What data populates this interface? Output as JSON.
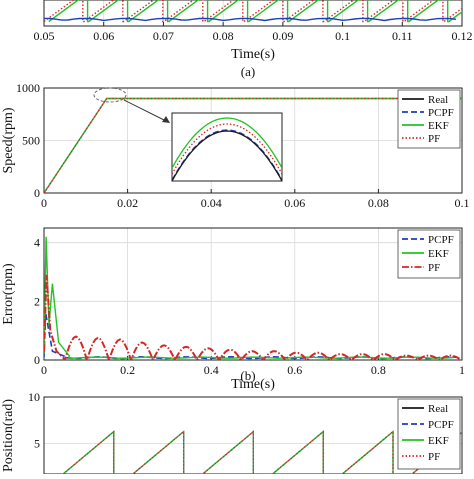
{
  "captions": {
    "a": "(a)",
    "b": "(b)"
  },
  "chart_data": [
    {
      "id": "panel-a-tail",
      "type": "line",
      "xlabel": "Time(s)",
      "ylabel": "",
      "xlim": [
        0.05,
        0.12
      ],
      "ylim": [
        -1,
        7
      ],
      "x_tick_labels": [
        "0.05",
        "0.06",
        "0.07",
        "0.08",
        "0.09",
        "0.1",
        "0.11",
        "0.12"
      ],
      "x_ticks": [
        0.05,
        0.06,
        0.07,
        0.08,
        0.09,
        0.1,
        0.11,
        0.12
      ],
      "grid": true,
      "series": [
        {
          "name": "",
          "color": "#d62728",
          "kind": "sawtooth_period",
          "period": 0.0067,
          "amplitude": 6.3,
          "style": "dotted"
        },
        {
          "name": "",
          "color": "#22c422",
          "kind": "sawtooth_period",
          "period": 0.0067,
          "amplitude": 6.3,
          "style": "solid"
        },
        {
          "name": "",
          "color": "#1f3fbf",
          "kind": "small_ripple",
          "amplitude": 0.5,
          "style": "solid"
        }
      ]
    },
    {
      "id": "speed",
      "type": "line",
      "xlabel": "",
      "ylabel": "Speed(rpm)",
      "xlim": [
        0,
        0.1
      ],
      "ylim": [
        0,
        1000
      ],
      "x_ticks": [
        0,
        0.02,
        0.04,
        0.06,
        0.08,
        0.1
      ],
      "x_tick_labels": [
        "0",
        "0.02",
        "0.04",
        "0.06",
        "0.08",
        "0.1"
      ],
      "y_ticks": [
        0,
        500,
        1000
      ],
      "y_tick_labels": [
        "0",
        "500",
        "1000"
      ],
      "grid": true,
      "legend": "top-right",
      "inset": true,
      "series": [
        {
          "name": "Real",
          "color": "#1a1a1a",
          "style": "solid",
          "x": [
            0,
            0.015,
            0.1
          ],
          "y": [
            0,
            900,
            900
          ]
        },
        {
          "name": "PCPF",
          "color": "#1f3fbf",
          "style": "dashed",
          "x": [
            0,
            0.015,
            0.1
          ],
          "y": [
            0,
            900,
            900
          ]
        },
        {
          "name": "EKF",
          "color": "#22c422",
          "style": "solid",
          "x": [
            0,
            0.015,
            0.1
          ],
          "y": [
            0,
            900,
            900
          ]
        },
        {
          "name": "PF",
          "color": "#d62728",
          "style": "dotted",
          "x": [
            0,
            0.015,
            0.1
          ],
          "y": [
            0,
            900,
            900
          ]
        }
      ]
    },
    {
      "id": "error",
      "type": "line",
      "xlabel": "Time(s)",
      "ylabel": "Error(rpm)",
      "xlim": [
        0,
        1
      ],
      "ylim": [
        0,
        4.5
      ],
      "x_ticks": [
        0,
        0.2,
        0.4,
        0.6,
        0.8,
        1
      ],
      "x_tick_labels": [
        "0",
        "0.2",
        "0.4",
        "0.6",
        "0.8",
        "1"
      ],
      "y_ticks": [
        0,
        2,
        4
      ],
      "y_tick_labels": [
        "0",
        "2",
        "4"
      ],
      "grid": true,
      "legend": "top-right",
      "series": [
        {
          "name": "PCPF",
          "color": "#1f3fbf",
          "style": "dashed",
          "peak": 1.6,
          "decay_to": 0.08
        },
        {
          "name": "EKF",
          "color": "#22c422",
          "style": "solid",
          "peak": 4.2,
          "decay_to": 0.08
        },
        {
          "name": "PF",
          "color": "#d62728",
          "style": "dashdot",
          "peak": 2.9,
          "arch_amplitudes": [
            0.8,
            0.75,
            0.7,
            0.6,
            0.5,
            0.45,
            0.4,
            0.35,
            0.3,
            0.3,
            0.25,
            0.25,
            0.2,
            0.2,
            0.2,
            0.15,
            0.15,
            0.15
          ]
        }
      ]
    },
    {
      "id": "position",
      "type": "line",
      "xlabel": "",
      "ylabel": "Position(rad)",
      "xlim": [
        0,
        0.1
      ],
      "ylim": [
        0,
        10
      ],
      "y_ticks": [
        5,
        10
      ],
      "y_tick_labels": [
        "5",
        "10"
      ],
      "grid": true,
      "legend": "top-right",
      "series": [
        {
          "name": "Real",
          "color": "#1a1a1a",
          "style": "solid"
        },
        {
          "name": "PCPF",
          "color": "#1f3fbf",
          "style": "dashed"
        },
        {
          "name": "EKF",
          "color": "#22c422",
          "style": "solid"
        },
        {
          "name": "PF",
          "color": "#d62728",
          "style": "dotted"
        }
      ],
      "wrap_value": 6.28
    }
  ]
}
